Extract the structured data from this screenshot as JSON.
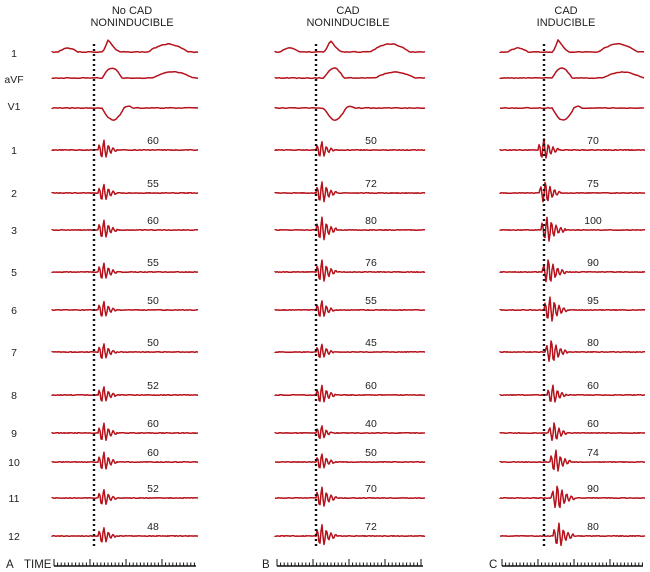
{
  "time_label": "TIME",
  "panels": [
    {
      "letter": "A",
      "title_line1": "No CAD",
      "title_line2": "NONINDUCIBLE",
      "surface_leads": [
        "1",
        "aVF",
        "V1"
      ],
      "intracardiac": [
        {
          "site": "1",
          "value": "60"
        },
        {
          "site": "2",
          "value": "55"
        },
        {
          "site": "3",
          "value": "60"
        },
        {
          "site": "5",
          "value": "55"
        },
        {
          "site": "6",
          "value": "50"
        },
        {
          "site": "7",
          "value": "50"
        },
        {
          "site": "8",
          "value": "52"
        },
        {
          "site": "9",
          "value": "60"
        },
        {
          "site": "10",
          "value": "60"
        },
        {
          "site": "11",
          "value": "52"
        },
        {
          "site": "12",
          "value": "48"
        }
      ]
    },
    {
      "letter": "B",
      "title_line1": "CAD",
      "title_line2": "NONINDUCIBLE",
      "surface_leads": [],
      "intracardiac": [
        {
          "site": "",
          "value": "50"
        },
        {
          "site": "",
          "value": "72"
        },
        {
          "site": "",
          "value": "80"
        },
        {
          "site": "",
          "value": "76"
        },
        {
          "site": "",
          "value": "55"
        },
        {
          "site": "",
          "value": "45"
        },
        {
          "site": "",
          "value": "60"
        },
        {
          "site": "",
          "value": "40"
        },
        {
          "site": "",
          "value": "50"
        },
        {
          "site": "",
          "value": "70"
        },
        {
          "site": "",
          "value": "72"
        }
      ]
    },
    {
      "letter": "C",
      "title_line1": "CAD",
      "title_line2": "INDUCIBLE",
      "surface_leads": [],
      "intracardiac": [
        {
          "site": "",
          "value": "70"
        },
        {
          "site": "",
          "value": "75"
        },
        {
          "site": "",
          "value": "100"
        },
        {
          "site": "",
          "value": "90"
        },
        {
          "site": "",
          "value": "95"
        },
        {
          "site": "",
          "value": "80"
        },
        {
          "site": "",
          "value": "60"
        },
        {
          "site": "",
          "value": "60"
        },
        {
          "site": "",
          "value": "74"
        },
        {
          "site": "",
          "value": "90"
        },
        {
          "site": "",
          "value": "80"
        }
      ]
    }
  ],
  "colors": {
    "trace": "#b5121b",
    "text": "#222222",
    "marker": "#111111"
  }
}
